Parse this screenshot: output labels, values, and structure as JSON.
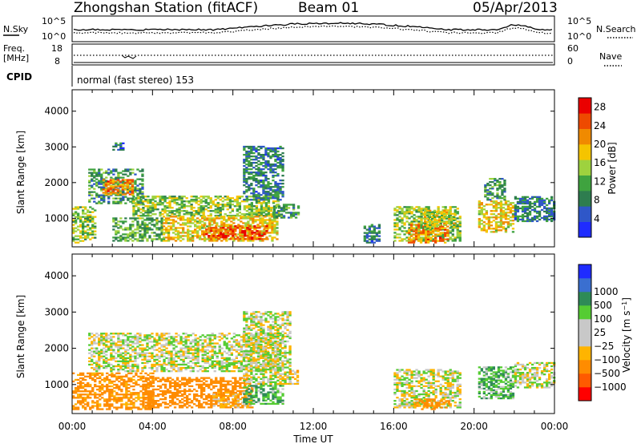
{
  "header": {
    "title": "Zhongshan Station (fitACF)",
    "beam": "Beam 01",
    "date": "05/Apr/2013"
  },
  "top_strip": {
    "left_label": "N.Sky",
    "right_label": "N.Search",
    "left_ticks": [
      "10^5",
      "10^0"
    ],
    "right_ticks": [
      "10^5",
      "10^0"
    ]
  },
  "freq_strip": {
    "left_label_1": "Freq.",
    "left_label_2": "[MHz]",
    "left_ticks": [
      "18",
      "8"
    ],
    "right_label": "Nave",
    "right_ticks": [
      "60",
      "0"
    ]
  },
  "cpid": {
    "label": "CPID",
    "text": "normal (fast stereo) 153"
  },
  "time_axis": {
    "tick_labels": [
      "00:00",
      "04:00",
      "08:00",
      "12:00",
      "16:00",
      "20:00",
      "00:00"
    ],
    "xlabel": "Time UT"
  },
  "colors": {
    "power": [
      "#1f2cff",
      "#2f57c8",
      "#2e7d4f",
      "#3fa33f",
      "#9ed23e",
      "#f5c400",
      "#f08a00",
      "#ee4a00",
      "#ea0000"
    ],
    "velocity": [
      "#ff0000",
      "#ff5a00",
      "#ff8c00",
      "#ffb400",
      "#c8c8c8",
      "#c8c8c8",
      "#55cc33",
      "#2e8b57",
      "#3a6fd0",
      "#1f2cff"
    ]
  },
  "chart_data": [
    {
      "type": "heatmap",
      "name": "power-panel",
      "ylabel": "Slant Range [km]",
      "y_ticks": [
        1000,
        2000,
        3000,
        4000
      ],
      "ylim": [
        200,
        4600
      ],
      "xlim_hours": [
        0,
        24
      ],
      "colorbar": {
        "label": "Power [dB]",
        "ticks": [
          4,
          8,
          12,
          16,
          20,
          24,
          28
        ],
        "range": [
          0,
          30
        ]
      },
      "regions": [
        {
          "t0": 0.0,
          "t1": 1.2,
          "r0": 300,
          "r1": 1300,
          "v": 14
        },
        {
          "t0": 0.8,
          "t1": 3.5,
          "r0": 1400,
          "r1": 2350,
          "v": 10
        },
        {
          "t0": 1.5,
          "t1": 3.0,
          "r0": 1650,
          "r1": 2100,
          "v": 22
        },
        {
          "t0": 2.0,
          "t1": 4.5,
          "r0": 350,
          "r1": 1000,
          "v": 12
        },
        {
          "t0": 3.0,
          "t1": 10.3,
          "r0": 1050,
          "r1": 1600,
          "v": 14
        },
        {
          "t0": 4.5,
          "t1": 10.2,
          "r0": 350,
          "r1": 1050,
          "v": 18
        },
        {
          "t0": 6.5,
          "t1": 9.7,
          "r0": 400,
          "r1": 800,
          "v": 24
        },
        {
          "t0": 8.5,
          "t1": 10.5,
          "r0": 1500,
          "r1": 3000,
          "v": 8
        },
        {
          "t0": 2.0,
          "t1": 2.6,
          "r0": 2900,
          "r1": 3100,
          "v": 6
        },
        {
          "t0": 10.0,
          "t1": 11.2,
          "r0": 1000,
          "r1": 1400,
          "v": 10
        },
        {
          "t0": 14.5,
          "t1": 15.3,
          "r0": 300,
          "r1": 800,
          "v": 8
        },
        {
          "t0": 16.0,
          "t1": 19.3,
          "r0": 350,
          "r1": 1300,
          "v": 14
        },
        {
          "t0": 16.7,
          "t1": 18.7,
          "r0": 300,
          "r1": 800,
          "v": 22
        },
        {
          "t0": 17.5,
          "t1": 19.0,
          "r0": 700,
          "r1": 1200,
          "v": 16
        },
        {
          "t0": 20.2,
          "t1": 22.0,
          "r0": 600,
          "r1": 1500,
          "v": 18
        },
        {
          "t0": 20.5,
          "t1": 21.5,
          "r0": 1500,
          "r1": 2100,
          "v": 10
        },
        {
          "t0": 22.0,
          "t1": 24.0,
          "r0": 900,
          "r1": 1600,
          "v": 8
        }
      ]
    },
    {
      "type": "heatmap",
      "name": "velocity-panel",
      "ylabel": "Slant Range [km]",
      "y_ticks": [
        1000,
        2000,
        3000,
        4000
      ],
      "ylim": [
        200,
        4600
      ],
      "xlim_hours": [
        0,
        24
      ],
      "colorbar": {
        "label": "Velocity [m s-1]",
        "ticks": [
          -1000,
          -500,
          -100,
          -25,
          25,
          100,
          500,
          1000
        ],
        "tick_labels": [
          "−1000",
          "−500",
          "−100",
          "−25",
          "25",
          "100",
          "500",
          "1000"
        ]
      },
      "regions": [
        {
          "t0": 0.8,
          "t1": 10.5,
          "r0": 1350,
          "r1": 2400,
          "v": 0
        },
        {
          "t0": 0.0,
          "t1": 4.0,
          "r0": 300,
          "r1": 1300,
          "v": -150
        },
        {
          "t0": 3.5,
          "t1": 9.0,
          "r0": 350,
          "r1": 1200,
          "v": -250
        },
        {
          "t0": 7.0,
          "t1": 8.8,
          "r0": 350,
          "r1": 800,
          "v": -80
        },
        {
          "t0": 8.5,
          "t1": 10.5,
          "r0": 450,
          "r1": 1000,
          "v": 80
        },
        {
          "t0": 8.5,
          "t1": 10.8,
          "r0": 1000,
          "r1": 3000,
          "v": 0
        },
        {
          "t0": 10.8,
          "t1": 11.2,
          "r0": 1000,
          "r1": 1400,
          "v": -50
        },
        {
          "t0": 16.0,
          "t1": 19.3,
          "r0": 350,
          "r1": 1400,
          "v": 0
        },
        {
          "t0": 17.0,
          "t1": 18.7,
          "r0": 300,
          "r1": 600,
          "v": -150
        },
        {
          "t0": 20.2,
          "t1": 22.0,
          "r0": 600,
          "r1": 1500,
          "v": 80
        },
        {
          "t0": 22.0,
          "t1": 24.0,
          "r0": 900,
          "r1": 1600,
          "v": 0
        }
      ]
    }
  ]
}
